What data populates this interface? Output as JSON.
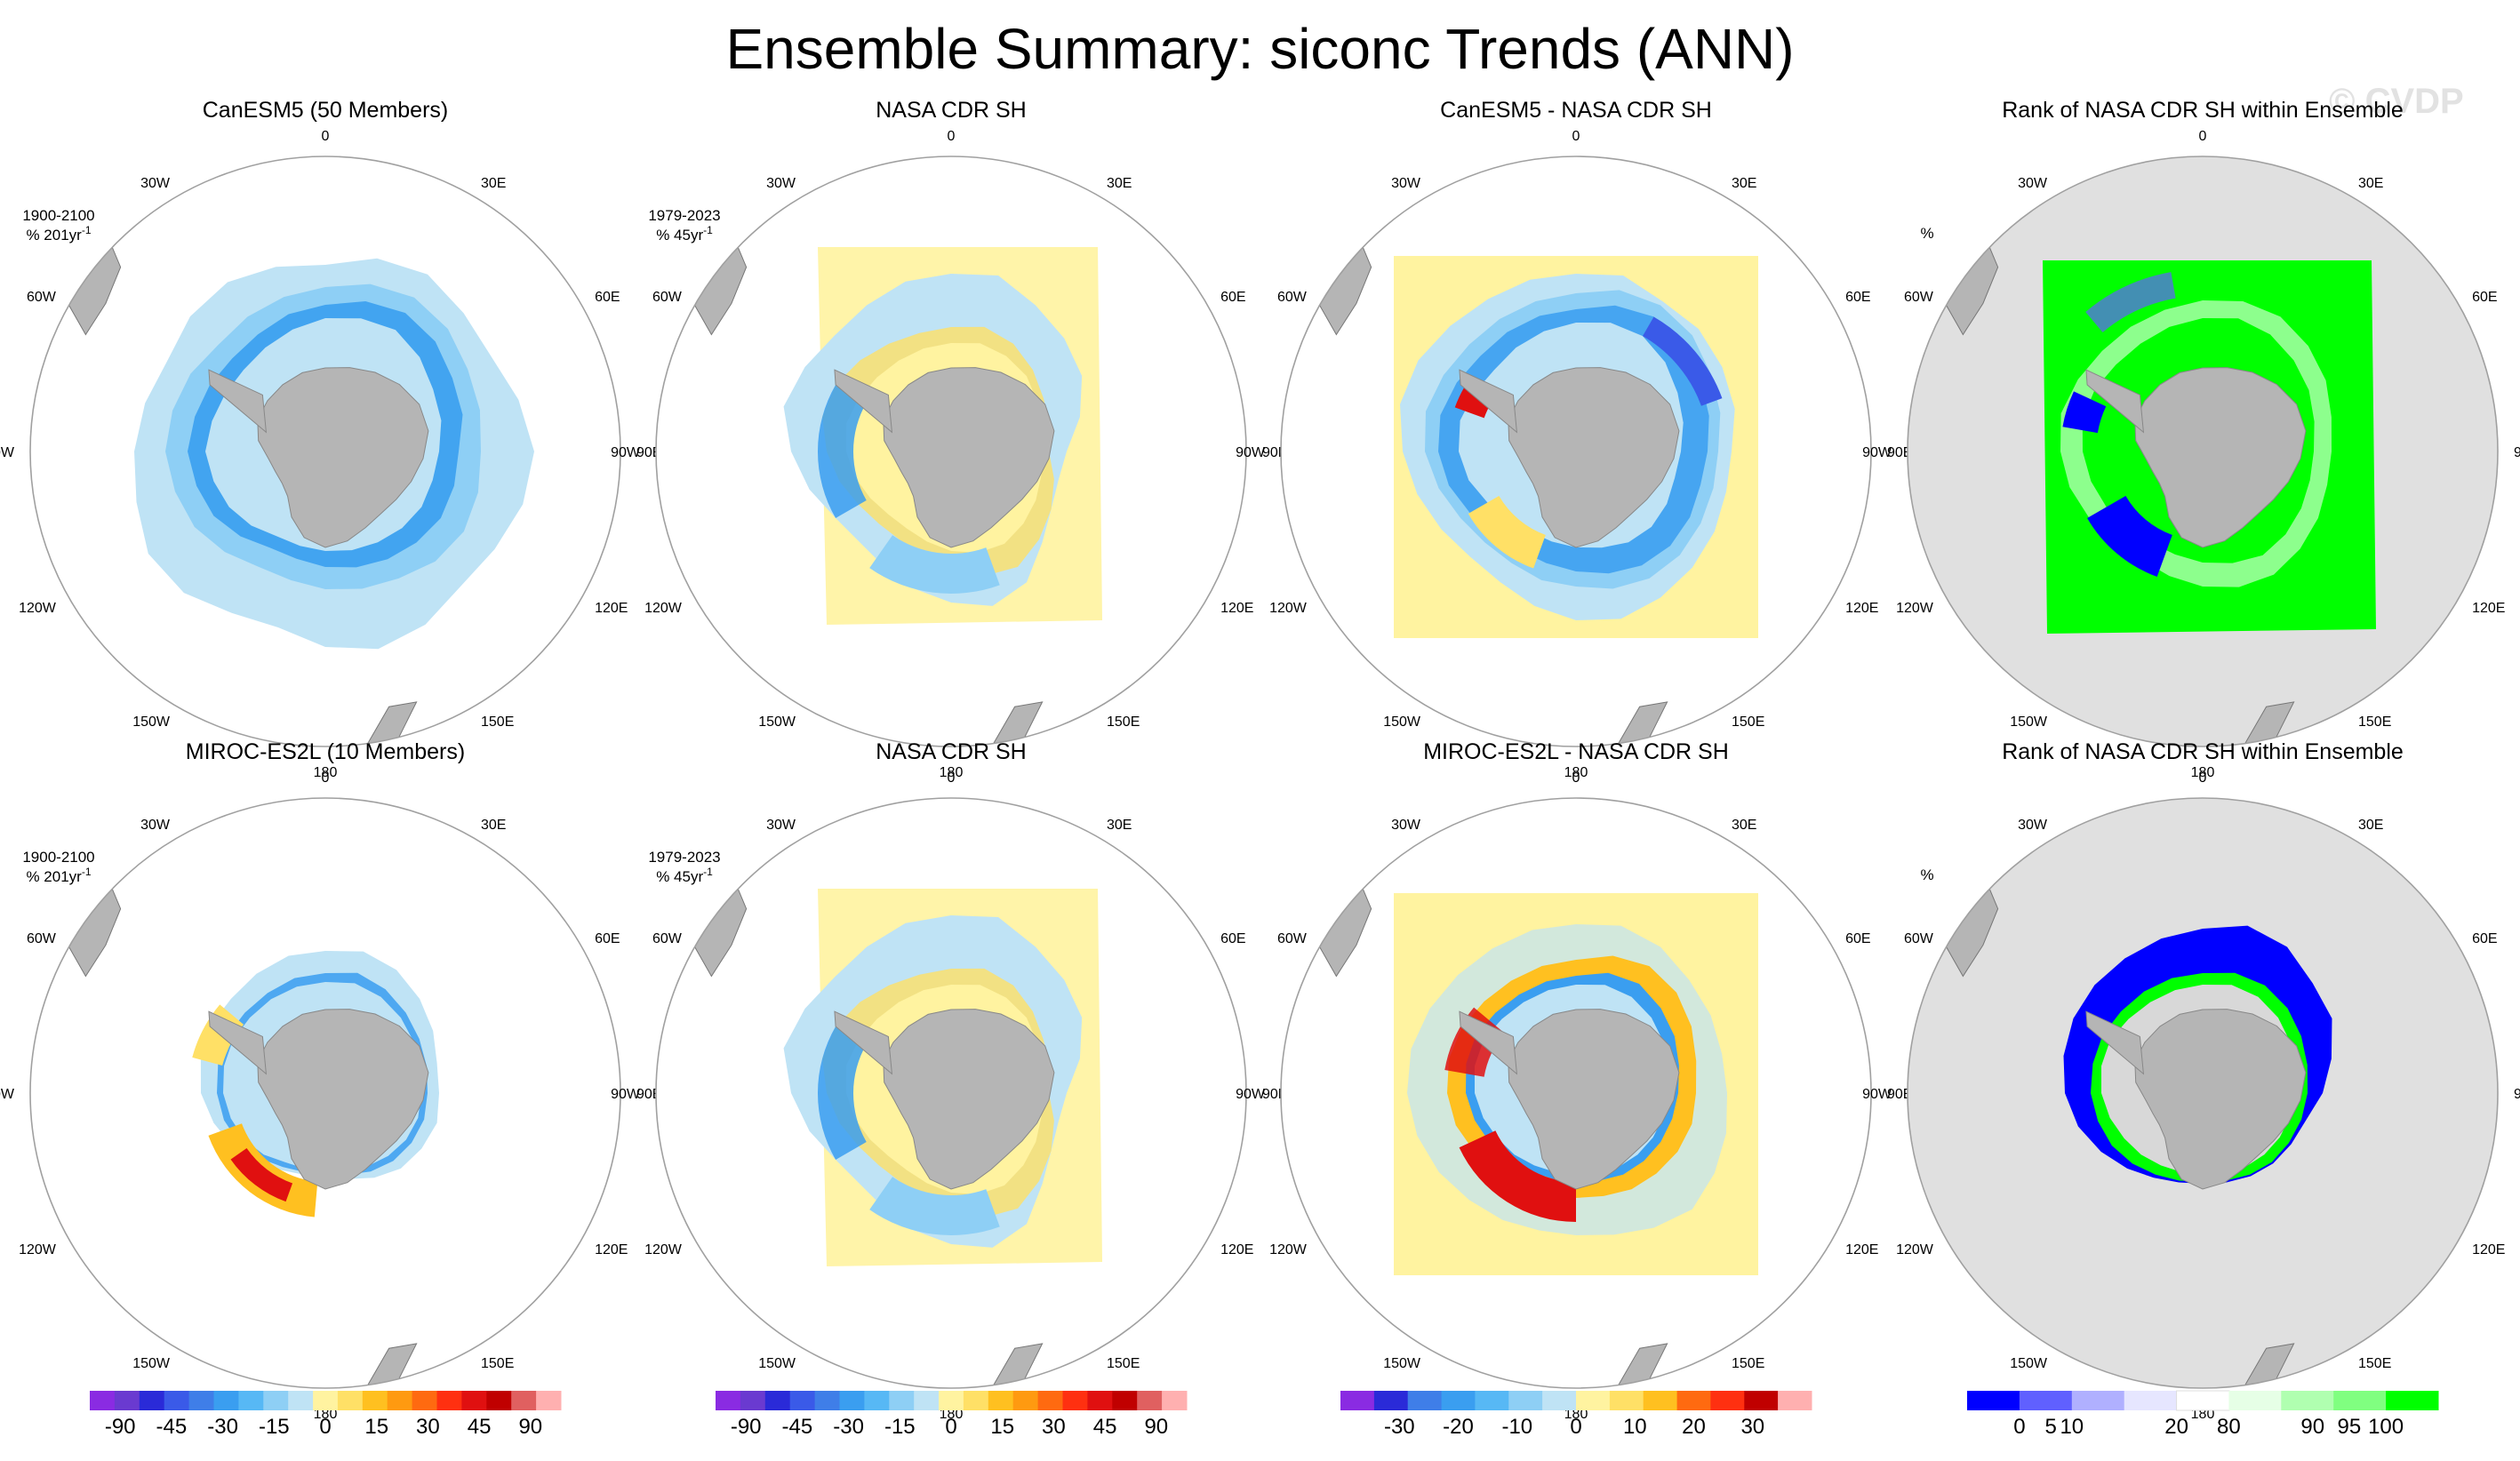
{
  "figure": {
    "title": "Ensemble Summary: siconc Trends (ANN)",
    "watermark": "© CVDP"
  },
  "chart_data": {
    "type": "polar-map-panels",
    "title": "Ensemble Summary: siconc Trends (ANN)",
    "lon_labels": [
      "0",
      "30E",
      "60E",
      "90E",
      "120E",
      "150E",
      "180",
      "150W",
      "120W",
      "90W",
      "60W",
      "30W"
    ],
    "colors": {
      "land": "#b5b5b5",
      "ring": "#a0a0a0",
      "trend_palette": [
        "#8a2be2",
        "#6a3ad0",
        "#2a2ad8",
        "#3a5ae8",
        "#3f7ee8",
        "#3a9ef0",
        "#57b8f5",
        "#8ecff5",
        "#bfe3f5",
        "#fff3a0",
        "#ffe066",
        "#ffc020",
        "#ff9a10",
        "#ff6a10",
        "#ff3010",
        "#e01010",
        "#c00000",
        "#e06060",
        "#ffb0b0"
      ],
      "diff_palette": [
        "#8a2be2",
        "#2a2ad8",
        "#3f7ee8",
        "#3a9ef0",
        "#57b8f5",
        "#8ecff5",
        "#bfe3f5",
        "#fff3a0",
        "#ffe066",
        "#ffc020",
        "#ff6a10",
        "#ff3010",
        "#c00000",
        "#ffb0b0"
      ],
      "rank_palette": [
        "#0000ff",
        "#6060ff",
        "#b0b0ff",
        "#e6e6ff",
        "#ffffff",
        "#e6ffe6",
        "#b0ffb0",
        "#80ff80",
        "#00ff00"
      ]
    },
    "rows": [
      {
        "model": "CanESM5 (50 Members)",
        "model_color": "#1a6e8e",
        "panels": [
          {
            "kind": "trend",
            "title": "CanESM5 (50 Members)",
            "period": "1900-2100",
            "units": "% 201yr",
            "units_sup": "-1",
            "pattern": "model1"
          },
          {
            "kind": "trend",
            "title": "NASA CDR SH",
            "period": "1979-2023",
            "units": "% 45yr",
            "units_sup": "-1",
            "pattern": "obs"
          },
          {
            "kind": "diff",
            "title": "CanESM5 - NASA CDR SH",
            "pattern": "diff1"
          },
          {
            "kind": "rank",
            "title": "Rank of NASA CDR SH within Ensemble",
            "units": "%",
            "pattern": "rank1"
          }
        ]
      },
      {
        "model": "MIROC-ES2L (10 Members)",
        "model_color": "#5a8a5a",
        "panels": [
          {
            "kind": "trend",
            "title": "MIROC-ES2L (10 Members)",
            "period": "1900-2100",
            "units": "% 201yr",
            "units_sup": "-1",
            "pattern": "model2"
          },
          {
            "kind": "trend",
            "title": "NASA CDR SH",
            "period": "1979-2023",
            "units": "% 45yr",
            "units_sup": "-1",
            "pattern": "obs"
          },
          {
            "kind": "diff",
            "title": "MIROC-ES2L - NASA CDR SH",
            "pattern": "diff2"
          },
          {
            "kind": "rank",
            "title": "Rank of NASA CDR SH within Ensemble",
            "units": "%",
            "pattern": "rank2"
          }
        ]
      }
    ],
    "colorbars": [
      {
        "kind": "trend",
        "levels": [
          -90,
          -75,
          -60,
          -45,
          -40,
          -35,
          -30,
          -25,
          -20,
          -15,
          -10,
          -5,
          0,
          5,
          10,
          15,
          20,
          25,
          30,
          35,
          40,
          45,
          60,
          75,
          90
        ],
        "labels": [
          "-90",
          "-45",
          "-30",
          "-15",
          "0",
          "15",
          "30",
          "45",
          "90"
        ]
      },
      {
        "kind": "trend",
        "levels": [
          -90,
          -75,
          -60,
          -45,
          -40,
          -35,
          -30,
          -25,
          -20,
          -15,
          -10,
          -5,
          0,
          5,
          10,
          15,
          20,
          25,
          30,
          35,
          40,
          45,
          60,
          75,
          90
        ],
        "labels": [
          "-90",
          "-45",
          "-30",
          "-15",
          "0",
          "15",
          "30",
          "45",
          "90"
        ]
      },
      {
        "kind": "diff",
        "levels": [
          -40,
          -35,
          -30,
          -25,
          -20,
          -15,
          -10,
          -5,
          0,
          5,
          10,
          15,
          20,
          25,
          30,
          35,
          40
        ],
        "labels": [
          "-30",
          "-20",
          "-10",
          "0",
          "10",
          "20",
          "30"
        ]
      },
      {
        "kind": "rank",
        "levels": [
          0,
          5,
          10,
          20,
          80,
          90,
          95,
          100
        ],
        "labels": [
          "0",
          "5",
          "10",
          "20",
          "80",
          "90",
          "95",
          "100"
        ]
      }
    ]
  }
}
